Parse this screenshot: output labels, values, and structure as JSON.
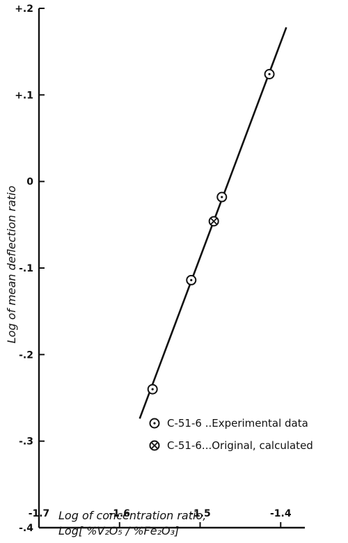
{
  "chart_data": {
    "type": "scatter",
    "title": "",
    "xlabel": "Log of concentration ratio,",
    "xlabel_line2": "Log[ %V₂O₅ / %Fe₂O₃]",
    "ylabel": "Log of mean deflection ratio",
    "xlim": [
      -1.7,
      -1.37
    ],
    "ylim": [
      -0.4,
      0.2
    ],
    "x_ticks": [
      -1.7,
      -1.6,
      -1.5,
      -1.4
    ],
    "x_tick_labels": [
      "-1.7",
      "-1.6",
      "-1.5",
      "-1.4"
    ],
    "y_ticks": [
      0.2,
      0.1,
      0,
      -0.1,
      -0.2,
      -0.3,
      -0.4
    ],
    "y_tick_labels": [
      "+.2",
      "+.1",
      "0",
      "-.1",
      "-.2",
      "-.3",
      "-.4"
    ],
    "grid": false,
    "legend_position": "bottom-right",
    "series": [
      {
        "name": "C-51-6 ..Experimental data",
        "marker": "circle-dot",
        "x": [
          -1.559,
          -1.511,
          -1.473,
          -1.414
        ],
        "y": [
          -0.24,
          -0.114,
          -0.018,
          0.124
        ]
      },
      {
        "name": "C-51-6...Original, calculated",
        "marker": "circle-x",
        "x": [
          -1.483
        ],
        "y": [
          -0.046
        ]
      }
    ],
    "fit_line": {
      "x": [
        -1.575,
        -1.393
      ],
      "y": [
        -0.274,
        0.178
      ]
    }
  }
}
